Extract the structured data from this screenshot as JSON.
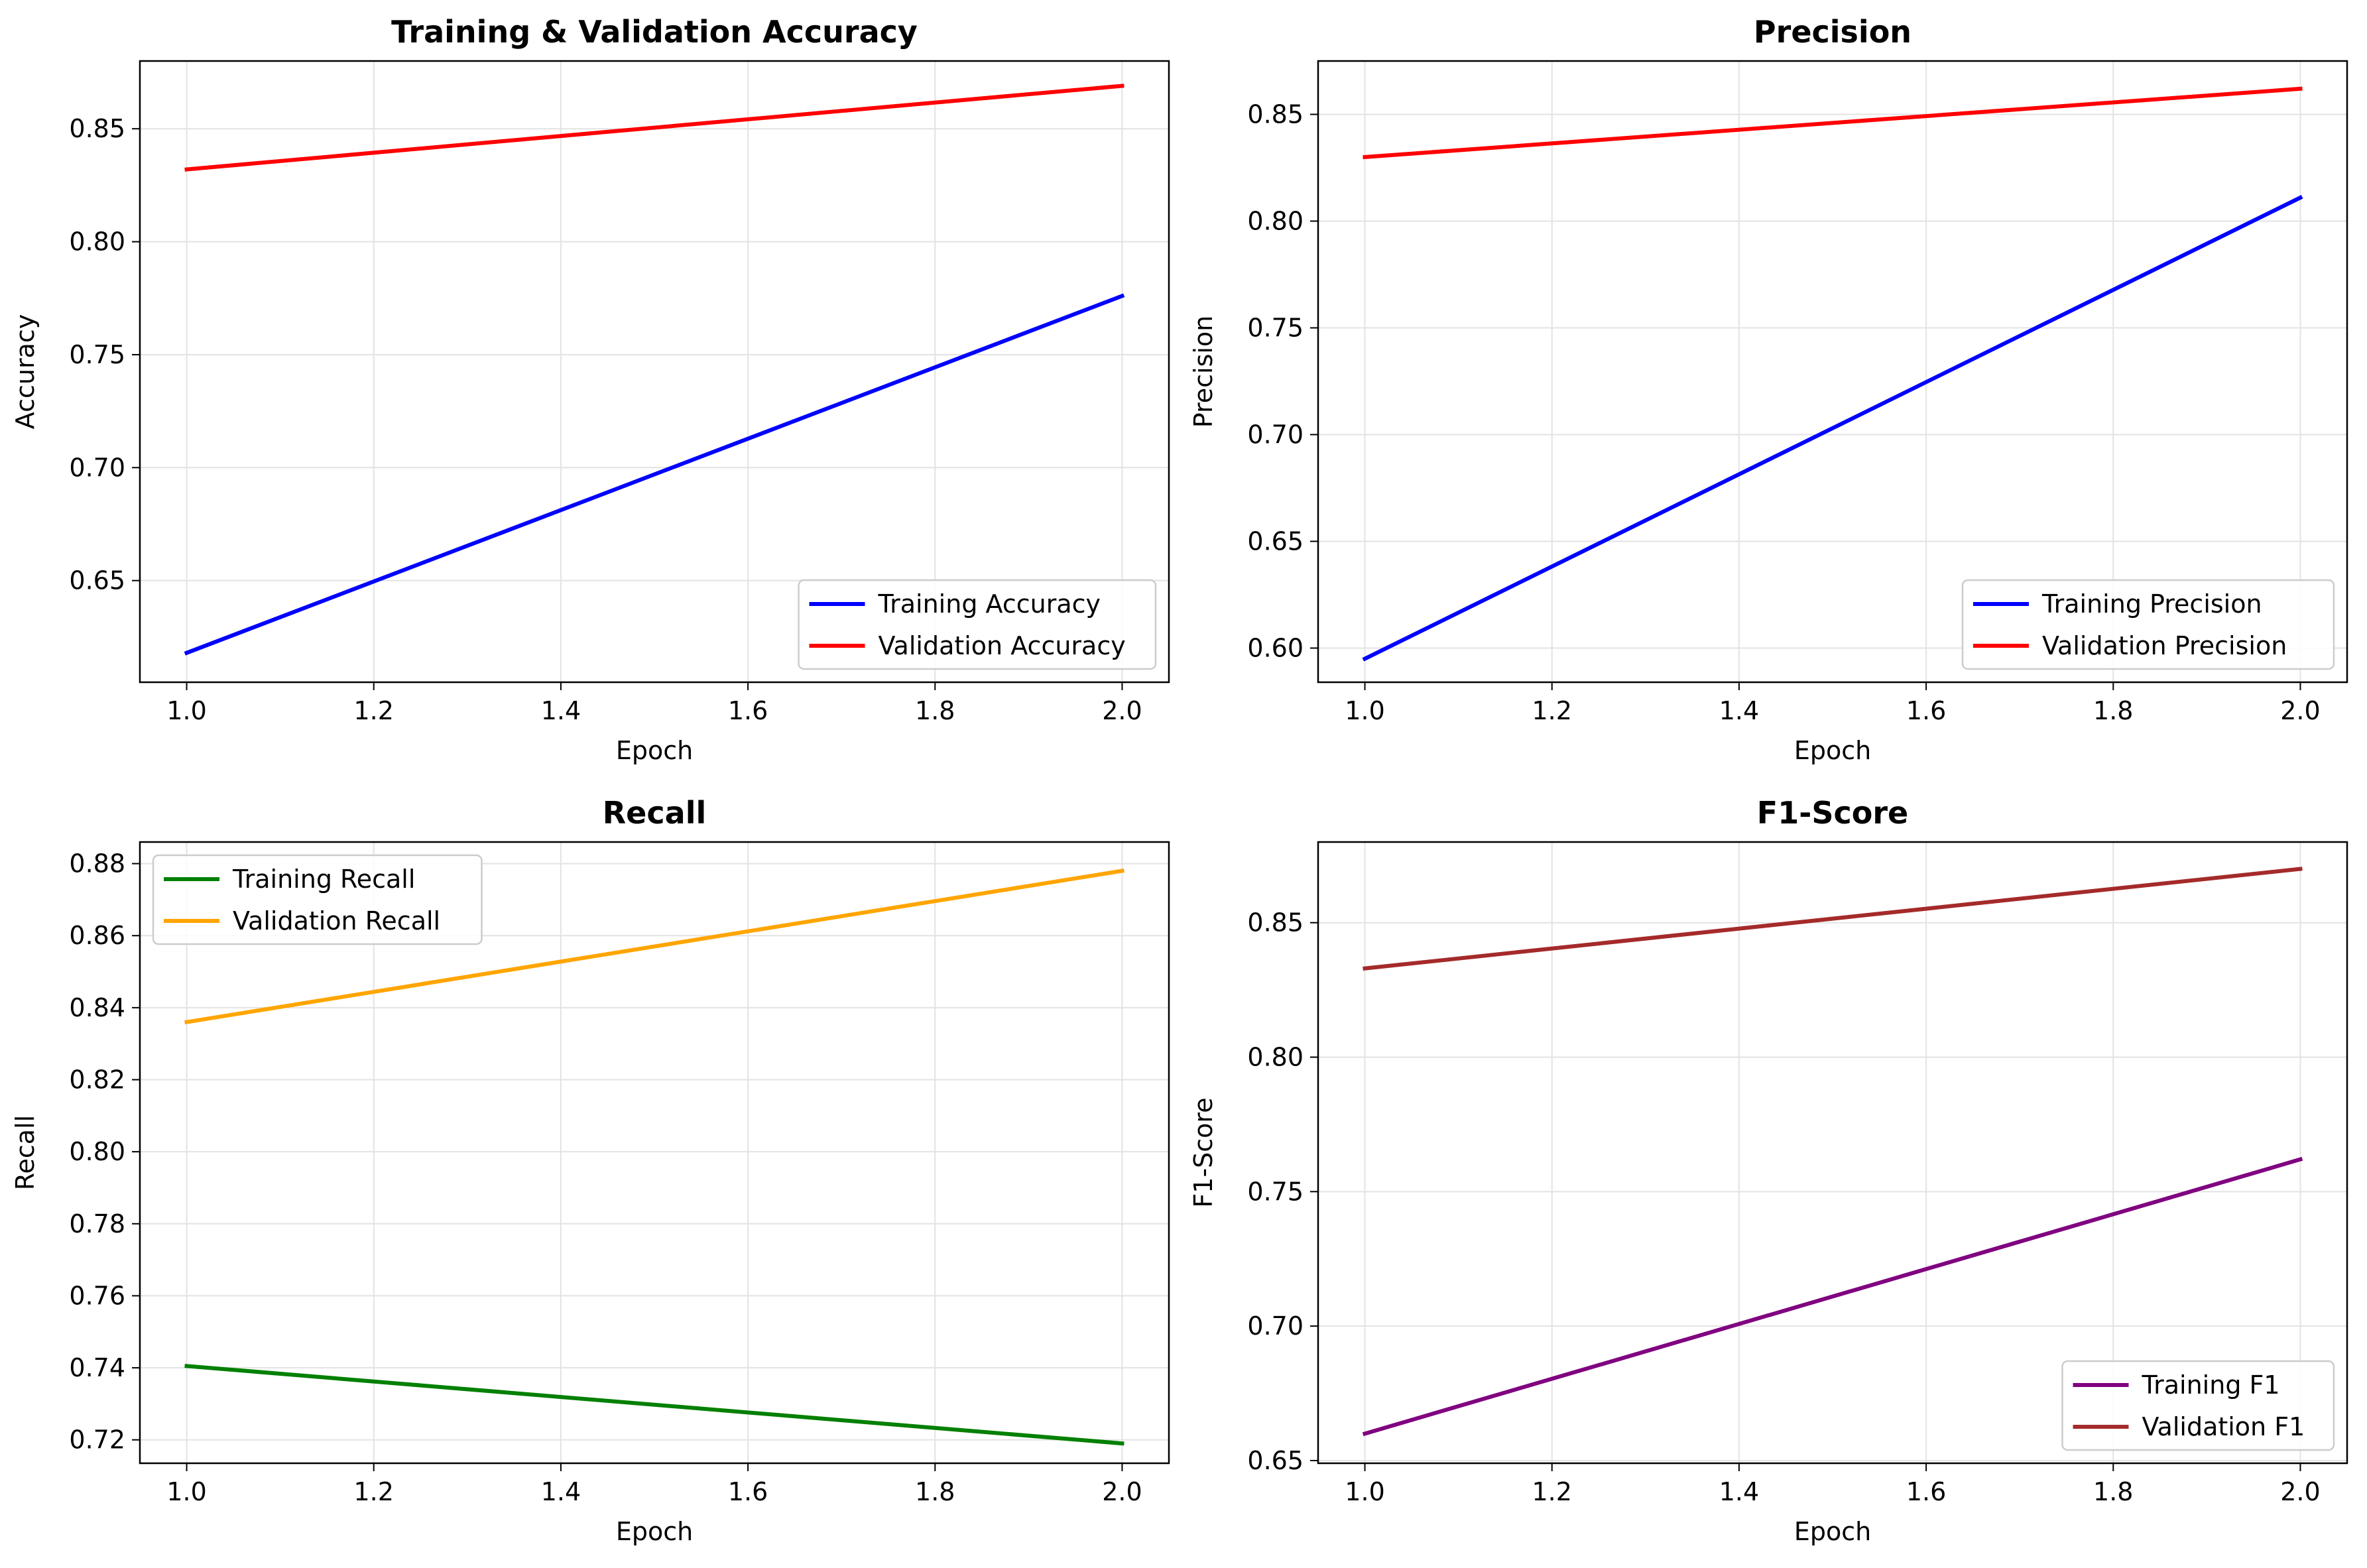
{
  "chart_data": [
    {
      "type": "line",
      "title": "Training & Validation Accuracy",
      "xlabel": "Epoch",
      "ylabel": "Accuracy",
      "xlim": [
        0.95,
        2.05
      ],
      "ylim": [
        0.605,
        0.88
      ],
      "xticks": [
        1.0,
        1.2,
        1.4,
        1.6,
        1.8,
        2.0
      ],
      "xtick_labels": [
        "1.0",
        "1.2",
        "1.4",
        "1.6",
        "1.8",
        "2.0"
      ],
      "yticks": [
        0.65,
        0.7,
        0.75,
        0.8,
        0.85
      ],
      "ytick_labels": [
        "0.65",
        "0.70",
        "0.75",
        "0.80",
        "0.85"
      ],
      "grid": true,
      "legend": "lower-right",
      "x": [
        1.0,
        2.0
      ],
      "series": [
        {
          "name": "Training Accuracy",
          "values": [
            0.618,
            0.776
          ],
          "color": "#0000ff"
        },
        {
          "name": "Validation Accuracy",
          "values": [
            0.832,
            0.869
          ],
          "color": "#ff0000"
        }
      ]
    },
    {
      "type": "line",
      "title": "Precision",
      "xlabel": "Epoch",
      "ylabel": "Precision",
      "xlim": [
        0.95,
        2.05
      ],
      "ylim": [
        0.584,
        0.875
      ],
      "xticks": [
        1.0,
        1.2,
        1.4,
        1.6,
        1.8,
        2.0
      ],
      "xtick_labels": [
        "1.0",
        "1.2",
        "1.4",
        "1.6",
        "1.8",
        "2.0"
      ],
      "yticks": [
        0.6,
        0.65,
        0.7,
        0.75,
        0.8,
        0.85
      ],
      "ytick_labels": [
        "0.60",
        "0.65",
        "0.70",
        "0.75",
        "0.80",
        "0.85"
      ],
      "grid": true,
      "legend": "lower-right",
      "x": [
        1.0,
        2.0
      ],
      "series": [
        {
          "name": "Training Precision",
          "values": [
            0.595,
            0.811
          ],
          "color": "#0000ff"
        },
        {
          "name": "Validation Precision",
          "values": [
            0.83,
            0.862
          ],
          "color": "#ff0000"
        }
      ]
    },
    {
      "type": "line",
      "title": "Recall",
      "xlabel": "Epoch",
      "ylabel": "Recall",
      "xlim": [
        0.95,
        2.05
      ],
      "ylim": [
        0.7135,
        0.886
      ],
      "xticks": [
        1.0,
        1.2,
        1.4,
        1.6,
        1.8,
        2.0
      ],
      "xtick_labels": [
        "1.0",
        "1.2",
        "1.4",
        "1.6",
        "1.8",
        "2.0"
      ],
      "yticks": [
        0.72,
        0.74,
        0.76,
        0.78,
        0.8,
        0.82,
        0.84,
        0.86,
        0.88
      ],
      "ytick_labels": [
        "0.72",
        "0.74",
        "0.76",
        "0.78",
        "0.80",
        "0.82",
        "0.84",
        "0.86",
        "0.88"
      ],
      "grid": true,
      "legend": "upper-left",
      "x": [
        1.0,
        2.0
      ],
      "series": [
        {
          "name": "Training Recall",
          "values": [
            0.7405,
            0.719
          ],
          "color": "#008000"
        },
        {
          "name": "Validation Recall",
          "values": [
            0.836,
            0.878
          ],
          "color": "#ffa500"
        }
      ]
    },
    {
      "type": "line",
      "title": "F1-Score",
      "xlabel": "Epoch",
      "ylabel": "F1-Score",
      "xlim": [
        0.95,
        2.05
      ],
      "ylim": [
        0.649,
        0.88
      ],
      "xticks": [
        1.0,
        1.2,
        1.4,
        1.6,
        1.8,
        2.0
      ],
      "xtick_labels": [
        "1.0",
        "1.2",
        "1.4",
        "1.6",
        "1.8",
        "2.0"
      ],
      "yticks": [
        0.65,
        0.7,
        0.75,
        0.8,
        0.85
      ],
      "ytick_labels": [
        "0.65",
        "0.70",
        "0.75",
        "0.80",
        "0.85"
      ],
      "grid": true,
      "legend": "lower-right",
      "x": [
        1.0,
        2.0
      ],
      "series": [
        {
          "name": "Training F1",
          "values": [
            0.66,
            0.762
          ],
          "color": "#800080"
        },
        {
          "name": "Validation F1",
          "values": [
            0.833,
            0.87
          ],
          "color": "#a52a2a"
        }
      ]
    }
  ]
}
